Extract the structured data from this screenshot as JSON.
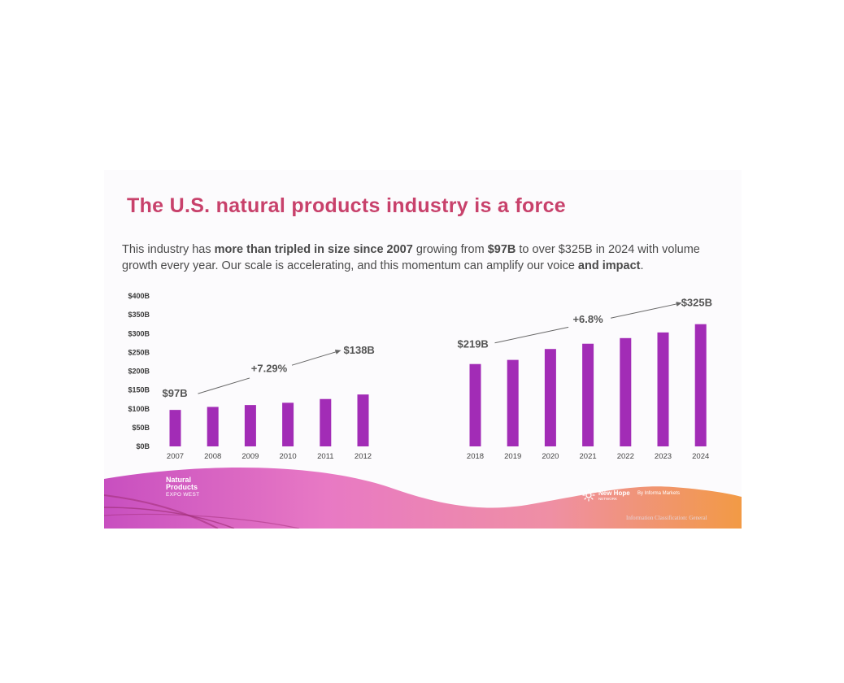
{
  "slide": {
    "title": "The U.S. natural products industry is a force",
    "subtitle_parts": {
      "p1": "This industry has ",
      "b1": "more than tripled in size since 2007",
      "p2": " growing from ",
      "b2": "$97B",
      "p3": " to over $325B   in 2024 with volume growth every year.  Our scale is accelerating, and this momentum can amplify our voice ",
      "b3": "and impact",
      "p4": "."
    }
  },
  "colors": {
    "title": "#c8416b",
    "bar": "#a22cb6",
    "text": "#4a4a4a"
  },
  "chart_data": {
    "type": "bar",
    "ylim": [
      0,
      400
    ],
    "yticks": [
      "$400B",
      "$350B",
      "$300B",
      "$250B",
      "$200B",
      "$150B",
      "$100B",
      "$50B",
      "$0B"
    ],
    "ytick_values": [
      400,
      350,
      300,
      250,
      200,
      150,
      100,
      50,
      0
    ],
    "groups": [
      {
        "name": "2007-2012",
        "categories": [
          "2007",
          "2008",
          "2009",
          "2010",
          "2011",
          "2012"
        ],
        "values": [
          97,
          105,
          110,
          116,
          126,
          138
        ],
        "start_label": "$97B",
        "end_label": "$138B",
        "growth_label": "+7.29%"
      },
      {
        "name": "2018-2024",
        "categories": [
          "2018",
          "2019",
          "2020",
          "2021",
          "2022",
          "2023",
          "2024"
        ],
        "values": [
          219,
          230,
          259,
          273,
          288,
          303,
          325
        ],
        "start_label": "$219B",
        "end_label": "$325B",
        "growth_label": "+6.8%"
      }
    ]
  },
  "footer": {
    "brand_npe": [
      "Natural",
      "Products",
      "EXPO WEST"
    ],
    "brand_newhope": "New Hope",
    "brand_newhope_sub": "NETWORK",
    "brand_informa": "By Informa Markets",
    "classification": "Information Classification: General"
  }
}
